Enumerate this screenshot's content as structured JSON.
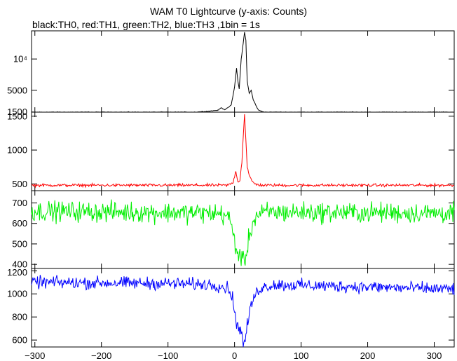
{
  "chart_data": {
    "type": "line",
    "title": "WAM T0 Lightcurve (y-axis: Counts)",
    "subtitle": "black:TH0, red:TH1, green:TH2, blue:TH3 ,1bin = 1s",
    "xlim": [
      -305,
      330
    ],
    "x_ticks": [
      -300,
      -200,
      -100,
      0,
      100,
      200,
      300
    ],
    "x_tick_labels": [
      "−300",
      "−200",
      "−100",
      "0",
      "100",
      "200",
      "300"
    ],
    "grid": false,
    "legend": "subtitle text",
    "panels": [
      {
        "name": "TH0",
        "color": "#000000",
        "ylim": [
          1500,
          14500
        ],
        "y_ticks": [
          {
            "value": 10000,
            "label": "10⁴"
          },
          {
            "value": 5000,
            "label": "5000"
          },
          {
            "value": 1500,
            "label": "1500"
          }
        ],
        "baseline": 1500,
        "noise": 40,
        "anchors": [
          [
            -305,
            1500
          ],
          [
            -60,
            1500
          ],
          [
            -40,
            1650
          ],
          [
            -25,
            1800
          ],
          [
            -20,
            2200
          ],
          [
            -15,
            1900
          ],
          [
            -5,
            2600
          ],
          [
            0,
            5500
          ],
          [
            3,
            8500
          ],
          [
            5,
            6500
          ],
          [
            7,
            5200
          ],
          [
            10,
            10000
          ],
          [
            13,
            12500
          ],
          [
            15,
            14300
          ],
          [
            17,
            13000
          ],
          [
            19,
            6500
          ],
          [
            22,
            4500
          ],
          [
            25,
            5000
          ],
          [
            28,
            3500
          ],
          [
            32,
            2600
          ],
          [
            36,
            1800
          ],
          [
            45,
            1500
          ],
          [
            330,
            1500
          ]
        ]
      },
      {
        "name": "TH1",
        "color": "#ff0000",
        "ylim": [
          400,
          1560
        ],
        "y_ticks": [
          {
            "value": 1500,
            "label": "1500"
          },
          {
            "value": 1000,
            "label": "1000"
          },
          {
            "value": 500,
            "label": "500"
          }
        ],
        "baseline": 480,
        "noise": 15,
        "anchors": [
          [
            -305,
            480
          ],
          [
            -10,
            480
          ],
          [
            -2,
            520
          ],
          [
            2,
            700
          ],
          [
            5,
            520
          ],
          [
            8,
            560
          ],
          [
            11,
            820
          ],
          [
            13,
            1200
          ],
          [
            15,
            1530
          ],
          [
            17,
            1150
          ],
          [
            19,
            760
          ],
          [
            22,
            620
          ],
          [
            25,
            560
          ],
          [
            30,
            500
          ],
          [
            40,
            480
          ],
          [
            330,
            480
          ]
        ]
      },
      {
        "name": "TH2",
        "color": "#00ee00",
        "ylim": [
          380,
          760
        ],
        "y_ticks": [
          {
            "value": 700,
            "label": "700"
          },
          {
            "value": 600,
            "label": "600"
          },
          {
            "value": 500,
            "label": "500"
          },
          {
            "value": 400,
            "label": "400"
          }
        ],
        "baseline": 660,
        "noise": 35,
        "anchors": [
          [
            -305,
            660
          ],
          [
            -150,
            655
          ],
          [
            -30,
            650
          ],
          [
            -12,
            640
          ],
          [
            -5,
            600
          ],
          [
            0,
            510
          ],
          [
            5,
            450
          ],
          [
            10,
            440
          ],
          [
            13,
            405
          ],
          [
            17,
            440
          ],
          [
            22,
            540
          ],
          [
            28,
            610
          ],
          [
            35,
            640
          ],
          [
            50,
            655
          ],
          [
            330,
            650
          ]
        ]
      },
      {
        "name": "TH3",
        "color": "#0000ff",
        "ylim": [
          540,
          1220
        ],
        "y_ticks": [
          {
            "value": 1200,
            "label": "1200"
          },
          {
            "value": 1000,
            "label": "1000"
          },
          {
            "value": 800,
            "label": "800"
          },
          {
            "value": 600,
            "label": "600"
          }
        ],
        "baseline": 1080,
        "noise": 38,
        "anchors": [
          [
            -305,
            1100
          ],
          [
            -100,
            1090
          ],
          [
            -30,
            1080
          ],
          [
            -10,
            1050
          ],
          [
            -3,
            980
          ],
          [
            0,
            820
          ],
          [
            3,
            750
          ],
          [
            6,
            720
          ],
          [
            10,
            680
          ],
          [
            13,
            560
          ],
          [
            16,
            600
          ],
          [
            20,
            760
          ],
          [
            25,
            900
          ],
          [
            30,
            980
          ],
          [
            38,
            1050
          ],
          [
            60,
            1080
          ],
          [
            200,
            1060
          ],
          [
            330,
            1040
          ]
        ]
      }
    ]
  }
}
